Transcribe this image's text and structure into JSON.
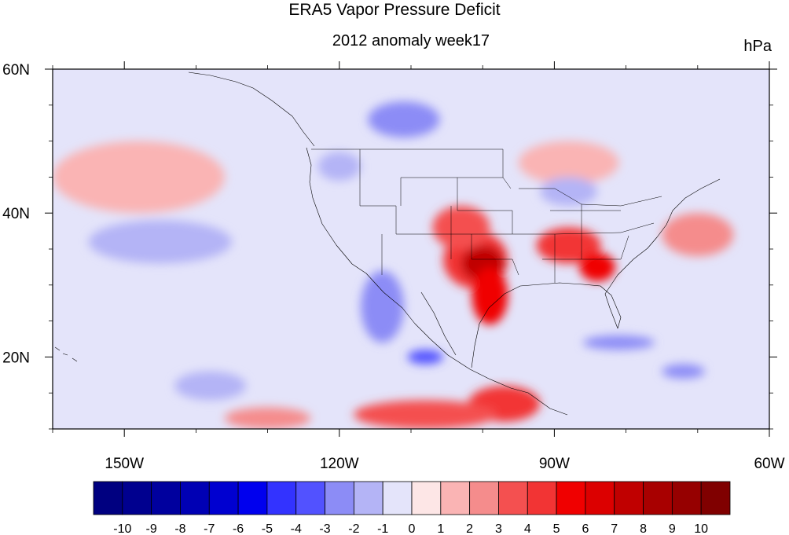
{
  "chart_data": {
    "type": "heatmap",
    "title": "ERA5 Vapor Pressure Deficit",
    "subtitle": "2012 anomaly week17",
    "units": "hPa",
    "x_axis": {
      "min": -160,
      "max": -60,
      "ticks": [
        -150,
        -120,
        -90,
        -60
      ],
      "tick_labels": [
        "150W",
        "120W",
        "90W",
        "60W"
      ]
    },
    "y_axis": {
      "min": 10,
      "max": 60,
      "ticks": [
        20,
        40,
        60
      ],
      "tick_labels": [
        "20N",
        "40N",
        "60N"
      ]
    },
    "colorbar": {
      "labels": [
        "-10",
        "-9",
        "-8",
        "-7",
        "-6",
        "-5",
        "-4",
        "-3",
        "-2",
        "-1",
        "0",
        "1",
        "2",
        "3",
        "4",
        "5",
        "6",
        "7",
        "8",
        "9",
        "10"
      ],
      "colors": [
        "#000080",
        "#00008f",
        "#00009e",
        "#0000b4",
        "#0000d0",
        "#0000ee",
        "#3333ff",
        "#5252ff",
        "#8c8cf6",
        "#b4b4f6",
        "#e4e4fa",
        "#fde6e6",
        "#fab4b4",
        "#f58c8c",
        "#f45050",
        "#f23434",
        "#f00000",
        "#dc0000",
        "#c00000",
        "#a80000",
        "#960000",
        "#800000"
      ]
    },
    "background_color": "#e4e4fa",
    "anomaly_regions": [
      {
        "lon": -101,
        "lat": 33.5,
        "rlon": 4.5,
        "rlat": 4.0,
        "value": 4
      },
      {
        "lon": -100,
        "lat": 33.0,
        "rlon": 3.0,
        "rlat": 2.5,
        "value": 7
      },
      {
        "lon": -99,
        "lat": 28.5,
        "rlon": 2.5,
        "rlat": 4.0,
        "value": 5
      },
      {
        "lon": -103,
        "lat": 38.0,
        "rlon": 4.0,
        "rlat": 3.0,
        "value": 3
      },
      {
        "lon": -88,
        "lat": 35.5,
        "rlon": 4.5,
        "rlat": 2.5,
        "value": 4
      },
      {
        "lon": -84,
        "lat": 32.5,
        "rlon": 2.5,
        "rlat": 2.0,
        "value": 5
      },
      {
        "lon": -97,
        "lat": 13.5,
        "rlon": 5.0,
        "rlat": 2.5,
        "value": 4
      },
      {
        "lon": -108,
        "lat": 12.0,
        "rlon": 10.0,
        "rlat": 2.0,
        "value": 3
      },
      {
        "lon": -130,
        "lat": 11.5,
        "rlon": 6.0,
        "rlat": 1.5,
        "value": 2
      },
      {
        "lon": -88,
        "lat": 47.0,
        "rlon": 7.0,
        "rlat": 3.0,
        "value": 1
      },
      {
        "lon": -70,
        "lat": 37.0,
        "rlon": 5.0,
        "rlat": 3.0,
        "value": 2
      },
      {
        "lon": -148,
        "lat": 45.0,
        "rlon": 12.0,
        "rlat": 5.0,
        "value": 1
      },
      {
        "lon": -111,
        "lat": 53.0,
        "rlon": 5.0,
        "rlat": 2.5,
        "value": -3
      },
      {
        "lon": -114,
        "lat": 27.0,
        "rlon": 3.0,
        "rlat": 5.0,
        "value": -3
      },
      {
        "lon": -108,
        "lat": 20.0,
        "rlon": 2.5,
        "rlat": 1.0,
        "value": -4
      },
      {
        "lon": -81,
        "lat": 22.0,
        "rlon": 5.0,
        "rlat": 1.0,
        "value": -3
      },
      {
        "lon": -145,
        "lat": 36.0,
        "rlon": 10.0,
        "rlat": 3.0,
        "value": -2
      },
      {
        "lon": -138,
        "lat": 16.0,
        "rlon": 5.0,
        "rlat": 2.0,
        "value": -2
      },
      {
        "lon": -88,
        "lat": 43.0,
        "rlon": 4.0,
        "rlat": 2.0,
        "value": -2
      },
      {
        "lon": -120,
        "lat": 46.5,
        "rlon": 3.0,
        "rlat": 2.0,
        "value": -2
      },
      {
        "lon": -72,
        "lat": 18.0,
        "rlon": 3.0,
        "rlat": 1.0,
        "value": -3
      }
    ]
  }
}
